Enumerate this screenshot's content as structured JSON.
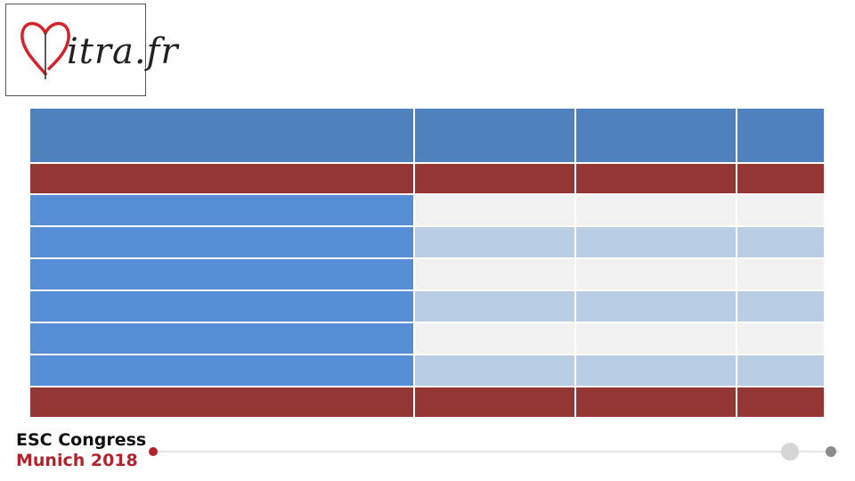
{
  "logo": {
    "text": "itra.fr",
    "accent_color": "#d2232a"
  },
  "footer": {
    "title": "ESC Congress",
    "subtitle": "Munich 2018",
    "accent_color": "#b0242b"
  },
  "table": {
    "header_color": "#4e81bd",
    "band_color": "#943634",
    "label_color": "#558ed5",
    "row_light_color": "#f2f2f2",
    "row_alt_color": "#b9cde5",
    "rows": [
      [
        "",
        "",
        "",
        ""
      ],
      [
        "",
        "",
        "",
        ""
      ],
      [
        "",
        "",
        "",
        ""
      ],
      [
        "",
        "",
        "",
        ""
      ],
      [
        "",
        "",
        "",
        ""
      ],
      [
        "",
        "",
        "",
        ""
      ],
      [
        "",
        "",
        "",
        ""
      ],
      [
        "",
        "",
        "",
        ""
      ],
      [
        "",
        "",
        "",
        ""
      ]
    ]
  }
}
